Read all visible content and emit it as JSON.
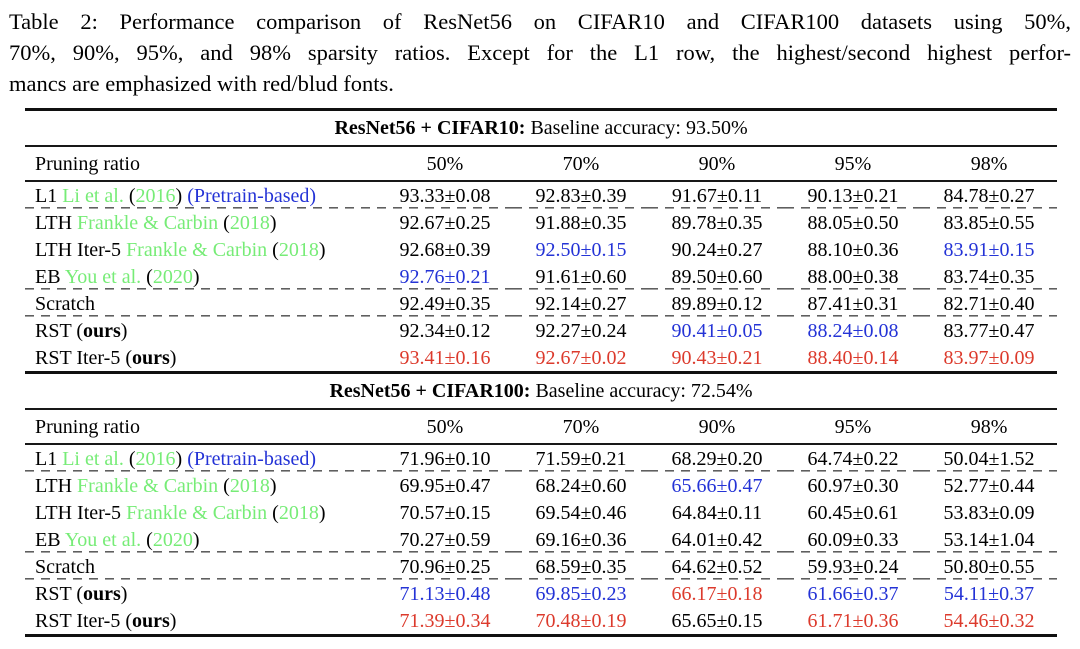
{
  "caption": {
    "line1": "Table 2:  Performance comparison of ResNet56 on CIFAR10 and CIFAR100 datasets using 50%,",
    "line2": "70%, 90%, 95%, and 98% sparsity ratios. Except for the L1 row, the highest/second highest perfor-",
    "line3": "mancs are emphasized with red/blud fonts."
  },
  "palette": {
    "green": "#77ec77",
    "blue": "#2433d6",
    "red": "#dc3a2c",
    "text": "#000000"
  },
  "tables": [
    {
      "banner": {
        "bold": "ResNet56 + CIFAR10:",
        "rest": " Baseline accuracy: 93.50%"
      },
      "header": {
        "label": "Pruning ratio",
        "columns": [
          "50%",
          "70%",
          "90%",
          "95%",
          "98%"
        ]
      },
      "rows": [
        {
          "label_parts": [
            {
              "text": "L1 "
            },
            {
              "text": "Li et al.",
              "color": "green",
              "link": true
            },
            {
              "text": " ("
            },
            {
              "text": "2016",
              "color": "green",
              "link": true
            },
            {
              "text": ") "
            },
            {
              "text": "(Pretrain-based)",
              "color": "blue",
              "link": true
            }
          ],
          "cells": [
            {
              "text": "93.33±0.08"
            },
            {
              "text": "92.83±0.39"
            },
            {
              "text": "91.67±0.11"
            },
            {
              "text": "90.13±0.21"
            },
            {
              "text": "84.78±0.27"
            }
          ],
          "dashed_after": true
        },
        {
          "label_parts": [
            {
              "text": "LTH "
            },
            {
              "text": "Frankle & Carbin",
              "color": "green",
              "link": true
            },
            {
              "text": " ("
            },
            {
              "text": "2018",
              "color": "green",
              "link": true
            },
            {
              "text": ")"
            }
          ],
          "cells": [
            {
              "text": "92.67±0.25"
            },
            {
              "text": "91.88±0.35"
            },
            {
              "text": "89.78±0.35"
            },
            {
              "text": "88.05±0.50"
            },
            {
              "text": "83.85±0.55"
            }
          ],
          "dashed_after": false
        },
        {
          "label_parts": [
            {
              "text": "LTH Iter-5 "
            },
            {
              "text": "Frankle & Carbin",
              "color": "green",
              "link": true
            },
            {
              "text": " ("
            },
            {
              "text": "2018",
              "color": "green",
              "link": true
            },
            {
              "text": ")"
            }
          ],
          "cells": [
            {
              "text": "92.68±0.39"
            },
            {
              "text": "92.50±0.15",
              "color": "blue"
            },
            {
              "text": "90.24±0.27"
            },
            {
              "text": "88.10±0.36"
            },
            {
              "text": "83.91±0.15",
              "color": "blue"
            }
          ],
          "dashed_after": false
        },
        {
          "label_parts": [
            {
              "text": "EB "
            },
            {
              "text": "You et al.",
              "color": "green",
              "link": true
            },
            {
              "text": " ("
            },
            {
              "text": "2020",
              "color": "green",
              "link": true
            },
            {
              "text": ")"
            }
          ],
          "cells": [
            {
              "text": "92.76±0.21",
              "color": "blue"
            },
            {
              "text": "91.61±0.60"
            },
            {
              "text": "89.50±0.60"
            },
            {
              "text": "88.00±0.38"
            },
            {
              "text": "83.74±0.35"
            }
          ],
          "dashed_after": true
        },
        {
          "label_parts": [
            {
              "text": "Scratch"
            }
          ],
          "cells": [
            {
              "text": "92.49±0.35"
            },
            {
              "text": "92.14±0.27"
            },
            {
              "text": "89.89±0.12"
            },
            {
              "text": "87.41±0.31"
            },
            {
              "text": "82.71±0.40"
            }
          ],
          "dashed_after": true
        },
        {
          "label_parts": [
            {
              "text": "RST ("
            },
            {
              "text": "ours",
              "bold": true
            },
            {
              "text": ")"
            }
          ],
          "cells": [
            {
              "text": "92.34±0.12"
            },
            {
              "text": "92.27±0.24"
            },
            {
              "text": "90.41±0.05",
              "color": "blue"
            },
            {
              "text": "88.24±0.08",
              "color": "blue"
            },
            {
              "text": "83.77±0.47"
            }
          ],
          "dashed_after": false
        },
        {
          "label_parts": [
            {
              "text": "RST Iter-5 ("
            },
            {
              "text": "ours",
              "bold": true
            },
            {
              "text": ")"
            }
          ],
          "cells": [
            {
              "text": "93.41±0.16",
              "color": "red"
            },
            {
              "text": "92.67±0.02",
              "color": "red"
            },
            {
              "text": "90.43±0.21",
              "color": "red"
            },
            {
              "text": "88.40±0.14",
              "color": "red"
            },
            {
              "text": "83.97±0.09",
              "color": "red"
            }
          ],
          "dashed_after": false
        }
      ]
    },
    {
      "banner": {
        "bold": "ResNet56 + CIFAR100:",
        "rest": " Baseline accuracy: 72.54%"
      },
      "header": {
        "label": "Pruning ratio",
        "columns": [
          "50%",
          "70%",
          "90%",
          "95%",
          "98%"
        ]
      },
      "rows": [
        {
          "label_parts": [
            {
              "text": "L1 "
            },
            {
              "text": "Li et al.",
              "color": "green",
              "link": true
            },
            {
              "text": " ("
            },
            {
              "text": "2016",
              "color": "green",
              "link": true
            },
            {
              "text": ") "
            },
            {
              "text": "(Pretrain-based)",
              "color": "blue",
              "link": true
            }
          ],
          "cells": [
            {
              "text": "71.96±0.10"
            },
            {
              "text": "71.59±0.21"
            },
            {
              "text": "68.29±0.20"
            },
            {
              "text": "64.74±0.22"
            },
            {
              "text": "50.04±1.52"
            }
          ],
          "dashed_after": true
        },
        {
          "label_parts": [
            {
              "text": "LTH "
            },
            {
              "text": "Frankle & Carbin",
              "color": "green",
              "link": true
            },
            {
              "text": " ("
            },
            {
              "text": "2018",
              "color": "green",
              "link": true
            },
            {
              "text": ")"
            }
          ],
          "cells": [
            {
              "text": "69.95±0.47"
            },
            {
              "text": "68.24±0.60"
            },
            {
              "text": "65.66±0.47",
              "color": "blue"
            },
            {
              "text": "60.97±0.30"
            },
            {
              "text": "52.77±0.44"
            }
          ],
          "dashed_after": false
        },
        {
          "label_parts": [
            {
              "text": "LTH Iter-5 "
            },
            {
              "text": "Frankle & Carbin",
              "color": "green",
              "link": true
            },
            {
              "text": " ("
            },
            {
              "text": "2018",
              "color": "green",
              "link": true
            },
            {
              "text": ")"
            }
          ],
          "cells": [
            {
              "text": "70.57±0.15"
            },
            {
              "text": "69.54±0.46"
            },
            {
              "text": "64.84±0.11"
            },
            {
              "text": "60.45±0.61"
            },
            {
              "text": "53.83±0.09"
            }
          ],
          "dashed_after": false
        },
        {
          "label_parts": [
            {
              "text": "EB "
            },
            {
              "text": "You et al.",
              "color": "green",
              "link": true
            },
            {
              "text": " ("
            },
            {
              "text": "2020",
              "color": "green",
              "link": true
            },
            {
              "text": ")"
            }
          ],
          "cells": [
            {
              "text": "70.27±0.59"
            },
            {
              "text": "69.16±0.36"
            },
            {
              "text": "64.01±0.42"
            },
            {
              "text": "60.09±0.33"
            },
            {
              "text": "53.14±1.04"
            }
          ],
          "dashed_after": true
        },
        {
          "label_parts": [
            {
              "text": "Scratch"
            }
          ],
          "cells": [
            {
              "text": "70.96±0.25"
            },
            {
              "text": "68.59±0.35"
            },
            {
              "text": "64.62±0.52"
            },
            {
              "text": "59.93±0.24"
            },
            {
              "text": "50.80±0.55"
            }
          ],
          "dashed_after": true
        },
        {
          "label_parts": [
            {
              "text": "RST ("
            },
            {
              "text": "ours",
              "bold": true
            },
            {
              "text": ")"
            }
          ],
          "cells": [
            {
              "text": "71.13±0.48",
              "color": "blue"
            },
            {
              "text": "69.85±0.23",
              "color": "blue"
            },
            {
              "text": "66.17±0.18",
              "color": "red"
            },
            {
              "text": "61.66±0.37",
              "color": "blue"
            },
            {
              "text": "54.11±0.37",
              "color": "blue"
            }
          ],
          "dashed_after": false
        },
        {
          "label_parts": [
            {
              "text": "RST Iter-5 ("
            },
            {
              "text": "ours",
              "bold": true
            },
            {
              "text": ")"
            }
          ],
          "cells": [
            {
              "text": "71.39±0.34",
              "color": "red"
            },
            {
              "text": "70.48±0.19",
              "color": "red"
            },
            {
              "text": "65.65±0.15"
            },
            {
              "text": "61.71±0.36",
              "color": "red"
            },
            {
              "text": "54.46±0.32",
              "color": "red"
            }
          ],
          "dashed_after": false
        }
      ]
    }
  ]
}
